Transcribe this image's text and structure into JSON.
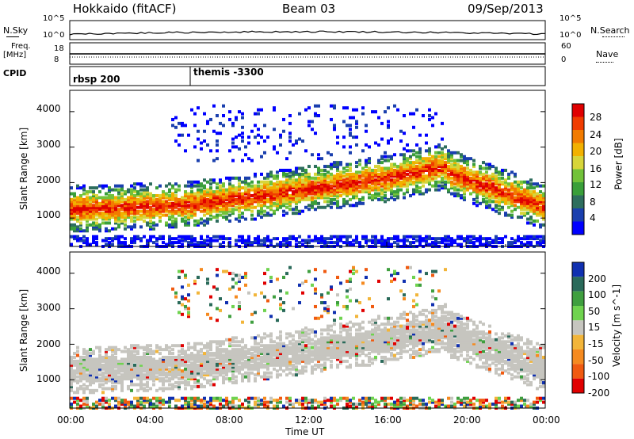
{
  "header": {
    "title_left": "Hokkaido (fitACF)",
    "title_center": "Beam 03",
    "title_right": "09/Sep/2013"
  },
  "noise_panel": {
    "left_label": "N.Sky",
    "right_label": "N.Search",
    "yticks_left": [
      "10^5",
      "10^0"
    ],
    "yticks_right": [
      "10^5",
      "10^0"
    ]
  },
  "freq_panel": {
    "left_label": "Freq.",
    "left_unit": "[MHz]",
    "right_label": "Nave",
    "yticks_left": [
      "18",
      "8"
    ],
    "yticks_right": [
      "60",
      "0"
    ]
  },
  "cpid_panel": {
    "label": "CPID",
    "modes": [
      {
        "name": "rbsp 200",
        "start": "00:00"
      },
      {
        "name": "themis -3300",
        "start": "06:00"
      }
    ]
  },
  "chart_data": [
    {
      "type": "heatmap",
      "ylabel": "Slant Range [km]",
      "yticks": [
        "1000",
        "2000",
        "3000",
        "4000"
      ],
      "colorbar": {
        "label": "Power [dB]",
        "ticks": [
          "4",
          "8",
          "12",
          "16",
          "20",
          "24",
          "28"
        ],
        "range": [
          0,
          30
        ],
        "colors": [
          "#0000ff",
          "#1a3fae",
          "#2e6e5e",
          "#3a9f3a",
          "#72c23a",
          "#d7d53a",
          "#f2b100",
          "#f27b00",
          "#f03c00",
          "#e00000"
        ]
      },
      "x_range_hours": [
        0,
        24
      ],
      "y_range_km": [
        200,
        4600
      ]
    },
    {
      "type": "heatmap",
      "ylabel": "Slant Range [km]",
      "xlabel": "Time UT",
      "xticks": [
        "00:00",
        "04:00",
        "08:00",
        "12:00",
        "16:00",
        "20:00",
        "00:00"
      ],
      "yticks": [
        "1000",
        "2000",
        "3000",
        "4000"
      ],
      "colorbar": {
        "label": "Velocity [m s^-1]",
        "ticks": [
          "200",
          "100",
          "50",
          "15",
          "-15",
          "-50",
          "-100",
          "-200"
        ],
        "colors": [
          "#1030b0",
          "#2a6a5a",
          "#3f9f3f",
          "#6fd34f",
          "#c6c5bf",
          "#f2b53a",
          "#f58a20",
          "#f05a10",
          "#e00000"
        ],
        "ground_scatter_color": "#c6c5bf"
      },
      "x_range_hours": [
        0,
        24
      ],
      "y_range_km": [
        200,
        4600
      ]
    }
  ]
}
